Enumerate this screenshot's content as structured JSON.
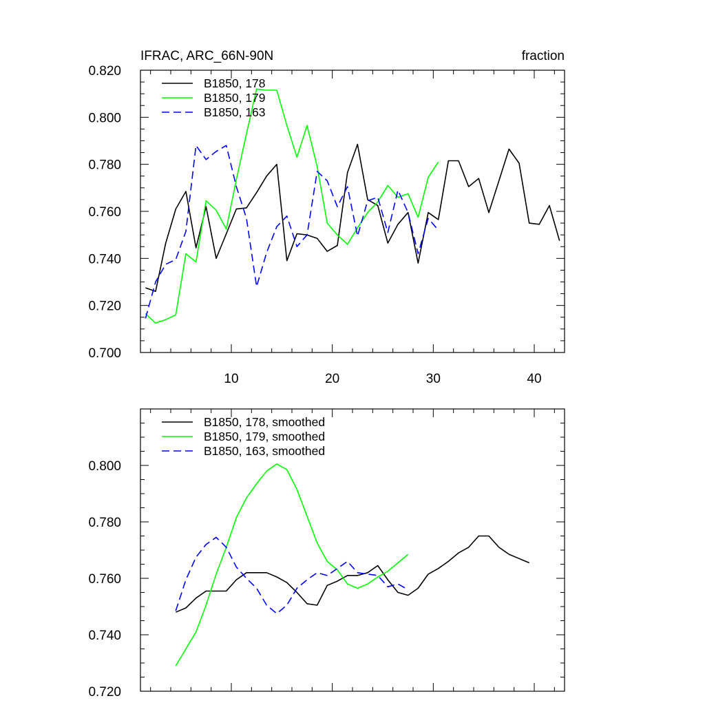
{
  "chart_data": [
    {
      "type": "line",
      "title": "IFRAC, ARC_66N-90N",
      "units": "fraction",
      "xlim": [
        1,
        43
      ],
      "ylim": [
        0.7,
        0.82
      ],
      "x_ticks": [
        10,
        20,
        30,
        40
      ],
      "y_ticks": [
        0.7,
        0.72,
        0.74,
        0.76,
        0.78,
        0.8,
        0.82
      ],
      "x_tick_labels": [
        "10",
        "20",
        "30",
        "40"
      ],
      "y_tick_labels": [
        "0.700",
        "0.720",
        "0.740",
        "0.760",
        "0.780",
        "0.800",
        "0.820"
      ],
      "legend_position": "top-left",
      "series": [
        {
          "name": "B1850, 178",
          "color": "#000000",
          "dash": "solid",
          "x": [
            1.5,
            2.5,
            3.5,
            4.5,
            5.5,
            6.5,
            7.5,
            8.5,
            9.5,
            10.5,
            11.5,
            12.5,
            13.5,
            14.5,
            15.5,
            16.5,
            17.5,
            18.5,
            19.5,
            20.5,
            21.5,
            22.5,
            23.5,
            24.5,
            25.5,
            26.5,
            27.5,
            28.5,
            29.5,
            30.5,
            31.5,
            32.5,
            33.5,
            34.5,
            35.5,
            36.5,
            37.5,
            38.5,
            39.5,
            40.5,
            41.5,
            42.5
          ],
          "y": [
            0.7275,
            0.726,
            0.7465,
            0.761,
            0.7685,
            0.7445,
            0.762,
            0.74,
            0.7505,
            0.761,
            0.7615,
            0.768,
            0.775,
            0.78,
            0.739,
            0.7505,
            0.75,
            0.7485,
            0.743,
            0.7455,
            0.7765,
            0.7885,
            0.765,
            0.7625,
            0.7465,
            0.7545,
            0.7595,
            0.738,
            0.7595,
            0.7565,
            0.7815,
            0.7815,
            0.7705,
            0.774,
            0.7595,
            0.773,
            0.7865,
            0.7805,
            0.755,
            0.7545,
            0.7625,
            0.7475
          ]
        },
        {
          "name": "B1850, 179",
          "color": "#00ff00",
          "dash": "solid",
          "x": [
            1.5,
            2.5,
            3.5,
            4.5,
            5.5,
            6.5,
            7.5,
            8.5,
            9.5,
            10.5,
            11.5,
            12.5,
            13.5,
            14.5,
            15.5,
            16.5,
            17.5,
            18.5,
            19.5,
            20.5,
            21.5,
            22.5,
            23.5,
            24.5,
            25.5,
            26.5,
            27.5,
            28.5,
            29.5,
            30.5
          ],
          "y": [
            0.7165,
            0.7125,
            0.714,
            0.716,
            0.742,
            0.7385,
            0.7645,
            0.7605,
            0.7525,
            0.7735,
            0.793,
            0.812,
            0.8115,
            0.8115,
            0.7965,
            0.783,
            0.7965,
            0.779,
            0.755,
            0.75,
            0.746,
            0.753,
            0.7595,
            0.764,
            0.771,
            0.766,
            0.7675,
            0.7575,
            0.7745,
            0.781
          ]
        },
        {
          "name": "B1850, 163",
          "color": "#0000ff",
          "dash": "dashed",
          "x": [
            1.5,
            2.5,
            3.5,
            4.5,
            5.5,
            6.5,
            7.5,
            8.5,
            9.5,
            10.5,
            11.5,
            12.5,
            13.5,
            14.5,
            15.5,
            16.5,
            17.5,
            18.5,
            19.5,
            20.5,
            21.5,
            22.5,
            23.5,
            24.5,
            25.5,
            26.5,
            27.5,
            28.5,
            29.5,
            30.5
          ],
          "y": [
            0.7145,
            0.73,
            0.7375,
            0.7395,
            0.7515,
            0.788,
            0.782,
            0.7855,
            0.788,
            0.7705,
            0.757,
            0.728,
            0.7425,
            0.7535,
            0.758,
            0.745,
            0.75,
            0.777,
            0.773,
            0.762,
            0.7705,
            0.7495,
            0.7645,
            0.766,
            0.751,
            0.769,
            0.7595,
            0.742,
            0.757,
            0.752
          ]
        }
      ]
    },
    {
      "type": "line",
      "title": "",
      "xlim": [
        1,
        43
      ],
      "ylim": [
        0.72,
        0.82
      ],
      "x_ticks": [
        10,
        20,
        30,
        40
      ],
      "y_ticks": [
        0.72,
        0.74,
        0.76,
        0.78,
        0.8,
        0.82
      ],
      "y_tick_labels": [
        "0.720",
        "0.740",
        "0.760",
        "0.780",
        "0.800"
      ],
      "legend_position": "top-left",
      "series": [
        {
          "name": "B1850, 178, smoothed",
          "color": "#000000",
          "dash": "solid",
          "x": [
            4.5,
            5.5,
            6.5,
            7.5,
            8.5,
            9.5,
            10.5,
            11.5,
            12.5,
            13.5,
            14.5,
            15.5,
            16.5,
            17.5,
            18.5,
            19.5,
            20.5,
            21.5,
            22.5,
            23.5,
            24.5,
            25.5,
            26.5,
            27.5,
            28.5,
            29.5,
            30.5,
            31.5,
            32.5,
            33.5,
            34.5,
            35.5,
            36.5,
            37.5,
            38.5,
            39.5
          ],
          "y": [
            0.748,
            0.7495,
            0.753,
            0.7555,
            0.7555,
            0.7555,
            0.7595,
            0.762,
            0.762,
            0.762,
            0.7605,
            0.7585,
            0.755,
            0.751,
            0.7505,
            0.7575,
            0.759,
            0.761,
            0.761,
            0.762,
            0.7645,
            0.7595,
            0.755,
            0.754,
            0.7565,
            0.7615,
            0.7635,
            0.766,
            0.769,
            0.771,
            0.775,
            0.775,
            0.771,
            0.7685,
            0.767,
            0.7655
          ]
        },
        {
          "name": "B1850, 179, smoothed",
          "color": "#00ff00",
          "dash": "solid",
          "x": [
            4.5,
            5.5,
            6.5,
            7.5,
            8.5,
            9.5,
            10.5,
            11.5,
            12.5,
            13.5,
            14.5,
            15.5,
            16.5,
            17.5,
            18.5,
            19.5,
            20.5,
            21.5,
            22.5,
            23.5,
            24.5,
            25.5,
            26.5,
            27.5
          ],
          "y": [
            0.729,
            0.735,
            0.741,
            0.7505,
            0.7615,
            0.771,
            0.7815,
            0.7885,
            0.7935,
            0.798,
            0.8005,
            0.7985,
            0.7915,
            0.782,
            0.7725,
            0.766,
            0.763,
            0.758,
            0.7565,
            0.758,
            0.7605,
            0.7625,
            0.7655,
            0.7685
          ]
        },
        {
          "name": "B1850, 163, smoothed",
          "color": "#0000ff",
          "dash": "dashed",
          "x": [
            4.5,
            5.5,
            6.5,
            7.5,
            8.5,
            9.5,
            10.5,
            11.5,
            12.5,
            13.5,
            14.5,
            15.5,
            16.5,
            17.5,
            18.5,
            19.5,
            20.5,
            21.5,
            22.5,
            23.5,
            24.5,
            25.5,
            26.5,
            27.5
          ],
          "y": [
            0.7485,
            0.7595,
            0.7675,
            0.772,
            0.7745,
            0.771,
            0.764,
            0.76,
            0.7565,
            0.7505,
            0.7475,
            0.7505,
            0.7565,
            0.7595,
            0.762,
            0.761,
            0.7635,
            0.766,
            0.762,
            0.7615,
            0.761,
            0.757,
            0.758,
            0.756
          ]
        }
      ]
    }
  ]
}
